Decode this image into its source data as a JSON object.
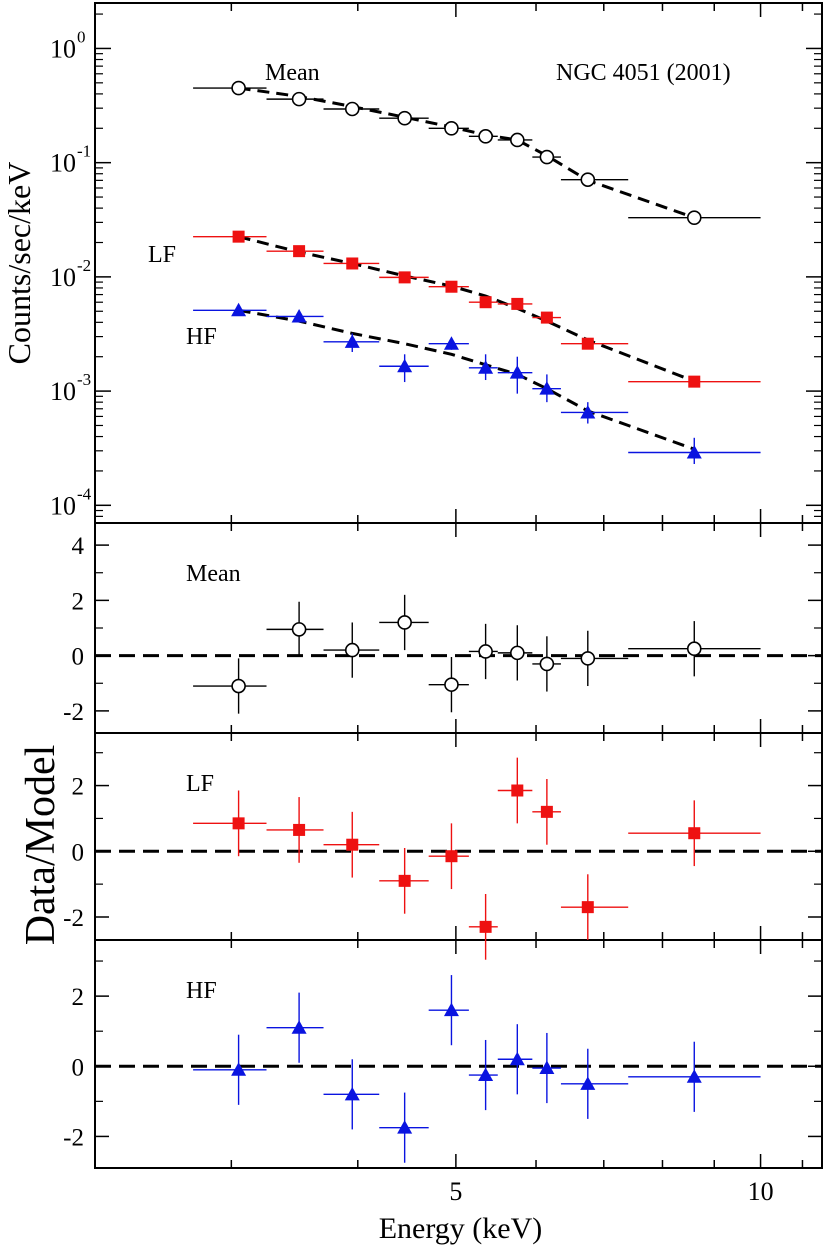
{
  "figure": {
    "object_label": "NGC 4051 (2001)",
    "xlabel": "Energy (keV)",
    "ylabel_top": "Counts/sec/keV",
    "ylabel_bottom": "Data/Model"
  },
  "chart_data": [
    {
      "type": "scatter",
      "panel": "spectrum",
      "yscale": "log",
      "xscale": "log",
      "xlim": [
        2.2,
        11.5
      ],
      "ylim": [
        7e-05,
        2.5
      ],
      "ytick_labels": [
        {
          "base": "10",
          "exp": "0"
        },
        {
          "base": "10",
          "exp": "-1"
        },
        {
          "base": "10",
          "exp": "-2"
        },
        {
          "base": "10",
          "exp": "-3"
        },
        {
          "base": "10",
          "exp": "-4"
        }
      ],
      "xlabel": "Energy (keV)",
      "ylabel": "Counts/sec/keV",
      "annotation": "NGC 4051 (2001)",
      "series": [
        {
          "name": "Mean",
          "color": "#000000",
          "marker": "open-circle",
          "x": [
            3.05,
            3.5,
            3.95,
            4.45,
            4.95,
            5.35,
            5.75,
            6.15,
            6.75,
            8.6
          ],
          "xlo": [
            2.75,
            3.25,
            3.7,
            4.2,
            4.7,
            5.15,
            5.5,
            5.95,
            6.35,
            7.4
          ],
          "xhi": [
            3.25,
            3.7,
            4.2,
            4.7,
            5.15,
            5.5,
            5.95,
            6.35,
            7.4,
            10.0
          ],
          "y": [
            0.45,
            0.36,
            0.295,
            0.245,
            0.2,
            0.17,
            0.158,
            0.112,
            0.071,
            0.033
          ],
          "model": [
            0.45,
            0.38,
            0.31,
            0.25,
            0.205,
            0.175,
            0.158,
            0.115,
            0.07,
            0.033
          ]
        },
        {
          "name": "LF",
          "color": "#ee1111",
          "marker": "filled-square",
          "x": [
            3.05,
            3.5,
            3.95,
            4.45,
            4.95,
            5.35,
            5.75,
            6.15,
            6.75,
            8.6
          ],
          "xlo": [
            2.75,
            3.25,
            3.7,
            4.2,
            4.7,
            5.15,
            5.5,
            5.95,
            6.35,
            7.4
          ],
          "xhi": [
            3.25,
            3.7,
            4.2,
            4.7,
            5.15,
            5.5,
            5.95,
            6.35,
            7.4,
            10.0
          ],
          "y": [
            0.0225,
            0.0168,
            0.0131,
            0.0099,
            0.0082,
            0.006,
            0.0058,
            0.0044,
            0.0026,
            0.00121
          ],
          "model": [
            0.0225,
            0.0165,
            0.0131,
            0.0102,
            0.0083,
            0.0068,
            0.0053,
            0.0041,
            0.0028,
            0.00122
          ]
        },
        {
          "name": "HF",
          "color": "#0a14e0",
          "marker": "filled-triangle",
          "x": [
            3.05,
            3.5,
            3.95,
            4.45,
            4.95,
            5.35,
            5.75,
            6.15,
            6.75,
            8.6
          ],
          "xlo": [
            2.75,
            3.25,
            3.7,
            4.2,
            4.7,
            5.15,
            5.5,
            5.95,
            6.35,
            7.4
          ],
          "xhi": [
            3.25,
            3.7,
            4.2,
            4.7,
            5.15,
            5.5,
            5.95,
            6.35,
            7.4,
            10.0
          ],
          "y": [
            0.0051,
            0.0045,
            0.0027,
            0.00165,
            0.0026,
            0.0016,
            0.00145,
            0.00105,
            0.00065,
            0.00029
          ],
          "ylo": [
            0.0051,
            0.0041,
            0.0022,
            0.0012,
            0.0023,
            0.00125,
            0.00095,
            0.0008,
            0.00052,
            0.00023
          ],
          "yhi": [
            0.0051,
            0.005,
            0.0032,
            0.0021,
            0.0029,
            0.0021,
            0.002,
            0.0014,
            0.0008,
            0.00039
          ],
          "model": [
            0.0051,
            0.0041,
            0.0032,
            0.0026,
            0.0021,
            0.0017,
            0.0014,
            0.00105,
            0.00067,
            0.00031
          ]
        }
      ]
    },
    {
      "type": "scatter",
      "panel": "residual",
      "name": "Mean",
      "color": "#000000",
      "marker": "open-circle",
      "ylim": [
        -2.8,
        4.8
      ],
      "yticks": [
        -2,
        0,
        2,
        4
      ],
      "ytick_labels": [
        "-2",
        "0",
        "2",
        "4"
      ],
      "x": [
        3.05,
        3.5,
        3.95,
        4.45,
        4.95,
        5.35,
        5.75,
        6.15,
        6.75,
        8.6
      ],
      "y": [
        -1.1,
        0.95,
        0.2,
        1.2,
        -1.05,
        0.15,
        0.1,
        -0.3,
        -0.1,
        0.25
      ]
    },
    {
      "type": "scatter",
      "panel": "residual",
      "name": "LF",
      "color": "#ee1111",
      "marker": "filled-square",
      "ylim": [
        -2.7,
        3.6
      ],
      "yticks": [
        -2,
        0,
        2
      ],
      "ytick_labels": [
        "-2",
        "0",
        "2"
      ],
      "x": [
        3.05,
        3.5,
        3.95,
        4.45,
        4.95,
        5.35,
        5.75,
        6.15,
        6.75,
        8.6
      ],
      "y": [
        0.85,
        0.65,
        0.2,
        -0.9,
        -0.15,
        -2.3,
        1.85,
        1.2,
        -1.7,
        0.55
      ]
    },
    {
      "type": "scatter",
      "panel": "residual",
      "name": "HF",
      "color": "#0a14e0",
      "marker": "filled-triangle",
      "ylim": [
        -2.9,
        3.6
      ],
      "yticks": [
        -2,
        0,
        2
      ],
      "ytick_labels": [
        "-2",
        "0",
        "2"
      ],
      "x": [
        3.05,
        3.5,
        3.95,
        4.45,
        4.95,
        5.35,
        5.75,
        6.15,
        6.75,
        8.6
      ],
      "y": [
        -0.1,
        1.1,
        -0.8,
        -1.75,
        1.6,
        -0.25,
        0.2,
        -0.05,
        -0.5,
        -0.3
      ]
    }
  ],
  "x_axis": {
    "tick_labels": [
      "5",
      "10"
    ],
    "tick_values": [
      5,
      10
    ]
  }
}
